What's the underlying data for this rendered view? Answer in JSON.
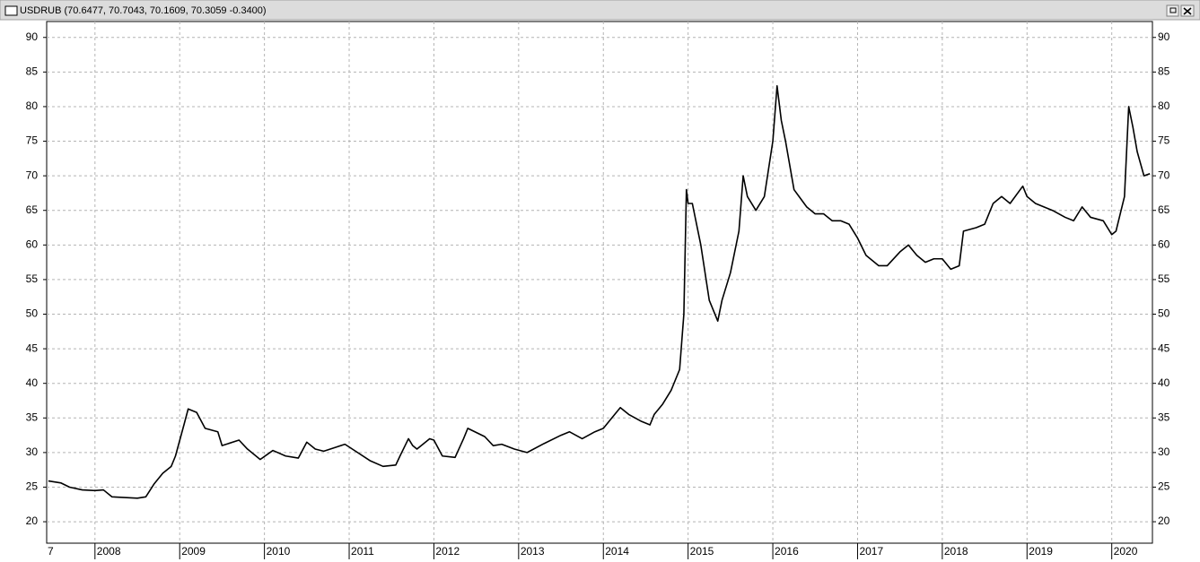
{
  "chart_data": {
    "type": "line",
    "title": "USDRUB (70.6477, 70.7043, 70.1609, 70.3059 -0.3400)",
    "clipped_label": "7",
    "color": "#000000",
    "grid": true,
    "xlim": [
      2007.43,
      2020.48
    ],
    "ylim": [
      16.9,
      92.3
    ],
    "xticks": [
      2008,
      2009,
      2010,
      2011,
      2012,
      2013,
      2014,
      2015,
      2016,
      2017,
      2018,
      2019,
      2020
    ],
    "yticks": [
      20,
      25,
      30,
      35,
      40,
      45,
      50,
      55,
      60,
      65,
      70,
      75,
      80,
      85,
      90
    ],
    "x": [
      2007.45,
      2007.6,
      2007.7,
      2007.85,
      2008.0,
      2008.1,
      2008.2,
      2008.35,
      2008.5,
      2008.6,
      2008.7,
      2008.8,
      2008.9,
      2008.95,
      2009.05,
      2009.1,
      2009.2,
      2009.3,
      2009.45,
      2009.5,
      2009.7,
      2009.8,
      2009.95,
      2010.1,
      2010.25,
      2010.4,
      2010.5,
      2010.6,
      2010.7,
      2010.85,
      2010.95,
      2011.1,
      2011.25,
      2011.4,
      2011.55,
      2011.6,
      2011.7,
      2011.75,
      2011.8,
      2011.95,
      2012.0,
      2012.1,
      2012.25,
      2012.35,
      2012.4,
      2012.6,
      2012.7,
      2012.8,
      2012.95,
      2013.1,
      2013.3,
      2013.5,
      2013.6,
      2013.75,
      2013.9,
      2014.0,
      2014.1,
      2014.2,
      2014.3,
      2014.45,
      2014.55,
      2014.6,
      2014.7,
      2014.8,
      2014.9,
      2014.95,
      2014.98,
      2015.0,
      2015.05,
      2015.15,
      2015.25,
      2015.35,
      2015.4,
      2015.5,
      2015.6,
      2015.65,
      2015.7,
      2015.8,
      2015.9,
      2016.0,
      2016.05,
      2016.1,
      2016.15,
      2016.25,
      2016.4,
      2016.5,
      2016.6,
      2016.7,
      2016.8,
      2016.9,
      2017.0,
      2017.1,
      2017.25,
      2017.35,
      2017.5,
      2017.6,
      2017.7,
      2017.8,
      2017.9,
      2018.0,
      2018.1,
      2018.2,
      2018.25,
      2018.4,
      2018.5,
      2018.6,
      2018.7,
      2018.8,
      2018.95,
      2019.0,
      2019.1,
      2019.3,
      2019.45,
      2019.55,
      2019.65,
      2019.75,
      2019.9,
      2020.0,
      2020.05,
      2020.15,
      2020.2,
      2020.25,
      2020.3,
      2020.38,
      2020.45
    ],
    "values": [
      25.9,
      25.6,
      25.0,
      24.6,
      24.5,
      24.6,
      23.6,
      23.5,
      23.4,
      23.6,
      25.5,
      27,
      28,
      29.5,
      34,
      36.3,
      35.8,
      33.5,
      33,
      31,
      31.8,
      30.5,
      29,
      30.3,
      29.5,
      29.2,
      31.5,
      30.5,
      30.2,
      30.8,
      31.2,
      30,
      28.8,
      28,
      28.2,
      29.5,
      32,
      31,
      30.5,
      32,
      31.8,
      29.5,
      29.3,
      32,
      33.5,
      32.3,
      31,
      31.2,
      30.5,
      30,
      31.3,
      32.5,
      33,
      32,
      33,
      33.5,
      35,
      36.5,
      35.5,
      34.5,
      34,
      35.5,
      37,
      39,
      42,
      50,
      68,
      66,
      66,
      60,
      52,
      49,
      52,
      56,
      62,
      70,
      67,
      65,
      67,
      75,
      83,
      78,
      75,
      68,
      65.5,
      64.5,
      64.5,
      63.5,
      63.5,
      63,
      61,
      58.5,
      57,
      57,
      59,
      60,
      58.5,
      57.5,
      58,
      58,
      56.5,
      57,
      62,
      62.5,
      63,
      66,
      67,
      66,
      68.5,
      67,
      66,
      65,
      64,
      63.5,
      65.5,
      64,
      63.5,
      61.5,
      62,
      67,
      80,
      77,
      73.5,
      70,
      70.3
    ]
  }
}
